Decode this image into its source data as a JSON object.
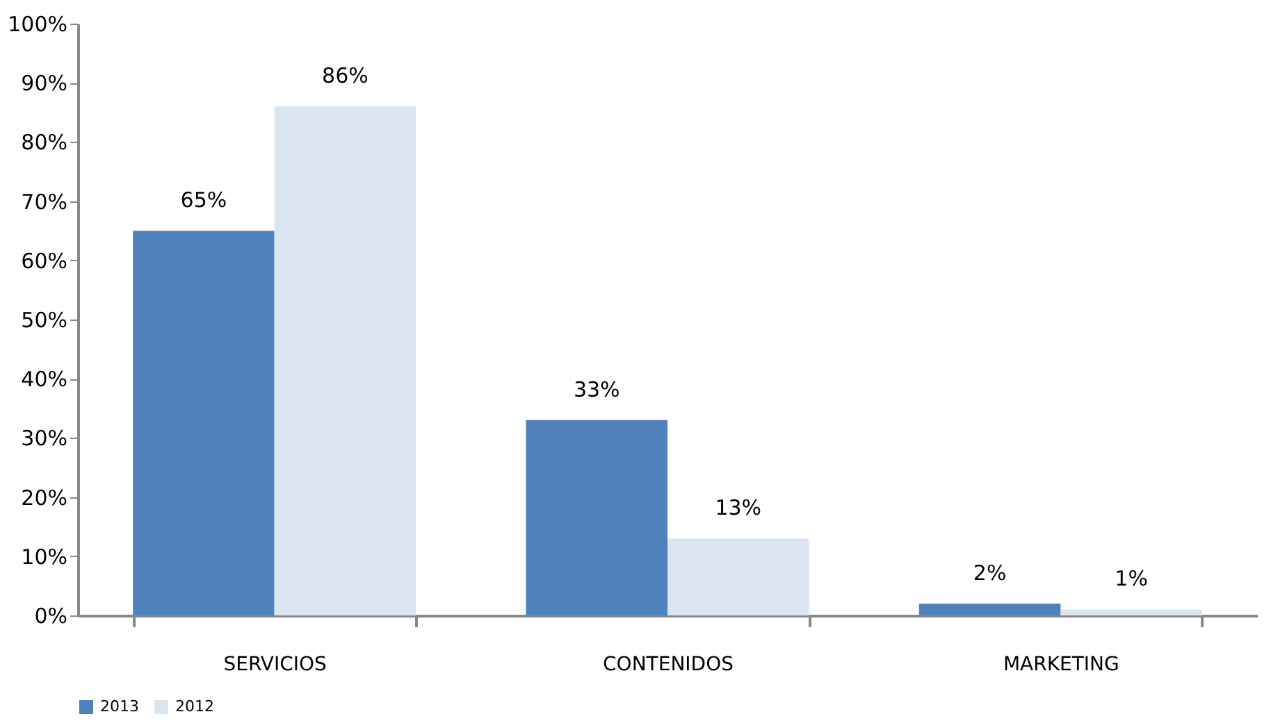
{
  "chart_data": {
    "type": "bar",
    "categories": [
      "SERVICIOS",
      "CONTENIDOS",
      "MARKETING"
    ],
    "series": [
      {
        "name": "2013",
        "color": "#4f81bd",
        "values": [
          65,
          33,
          2
        ],
        "value_labels": [
          "65%",
          "33%",
          "2%"
        ]
      },
      {
        "name": "2012",
        "color": "#dbe5f1",
        "values": [
          86,
          13,
          1
        ],
        "value_labels": [
          "86%",
          "13%",
          "1%"
        ]
      }
    ],
    "ylim": [
      0,
      100
    ],
    "yticks": [
      {
        "value": 0,
        "label": "0%"
      },
      {
        "value": 10,
        "label": "10%"
      },
      {
        "value": 20,
        "label": "20%"
      },
      {
        "value": 30,
        "label": "30%"
      },
      {
        "value": 40,
        "label": "40%"
      },
      {
        "value": 50,
        "label": "50%"
      },
      {
        "value": 60,
        "label": "60%"
      },
      {
        "value": 70,
        "label": "70%"
      },
      {
        "value": 80,
        "label": "80%"
      },
      {
        "value": 90,
        "label": "90%"
      },
      {
        "value": 100,
        "label": "100%"
      }
    ],
    "grid": false,
    "legend": "bottom"
  }
}
